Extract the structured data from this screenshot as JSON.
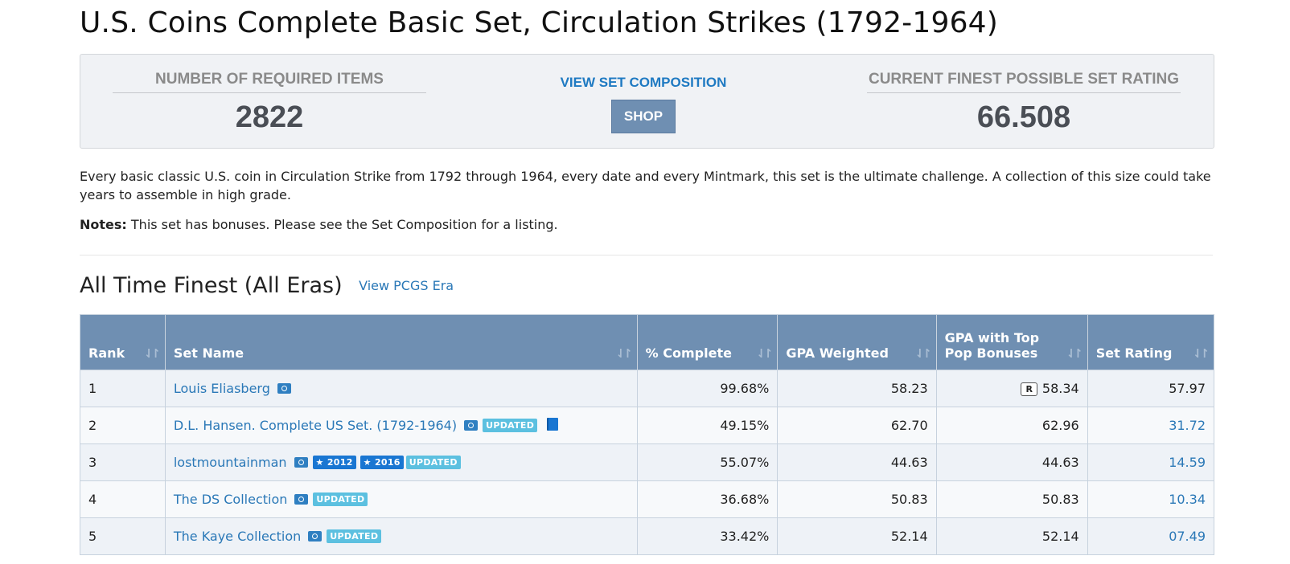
{
  "page": {
    "title": "U.S. Coins Complete Basic Set, Circulation Strikes (1792-1964)"
  },
  "stats": {
    "required_label": "NUMBER OF REQUIRED ITEMS",
    "required_value": "2822",
    "view_link": "VIEW SET COMPOSITION",
    "shop_label": "SHOP",
    "rating_label": "CURRENT FINEST POSSIBLE SET RATING",
    "rating_value": "66.508"
  },
  "description": "Every basic classic U.S. coin in Circulation Strike from 1792 through 1964, every date and every Mintmark, this set is the ultimate challenge. A collection of this size could take years to assemble in high grade.",
  "notes": {
    "label": "Notes:",
    "text": " This set has bonuses. Please see the Set Composition for a listing."
  },
  "section": {
    "heading": "All Time Finest (All Eras)",
    "link": "View PCGS Era"
  },
  "table": {
    "headers": {
      "rank": "Rank",
      "set_name": "Set Name",
      "complete": "% Complete",
      "gpa_weighted": "GPA Weighted",
      "gpa_top_line1": "GPA with Top",
      "gpa_top_line2": "Pop Bonuses",
      "set_rating": "Set Rating"
    },
    "rows": [
      {
        "rank": "1",
        "name": "Louis Eliasberg",
        "complete": "99.68%",
        "gpa": "58.23",
        "r_badge": "R",
        "gpa_top": "58.34",
        "rating": "57.97"
      },
      {
        "rank": "2",
        "name": "D.L. Hansen. Complete US Set. (1792-1964)",
        "badge": "UPDATED",
        "complete": "49.15%",
        "gpa": "62.70",
        "gpa_top": "62.96",
        "rating": "31.72"
      },
      {
        "rank": "3",
        "name": "lostmountainman",
        "star1": "★ 2012",
        "star2": "★ 2016",
        "badge": "UPDATED",
        "complete": "55.07%",
        "gpa": "44.63",
        "gpa_top": "44.63",
        "rating": "14.59"
      },
      {
        "rank": "4",
        "name": "The DS Collection",
        "badge": "UPDATED",
        "complete": "36.68%",
        "gpa": "50.83",
        "gpa_top": "50.83",
        "rating": "10.34"
      },
      {
        "rank": "5",
        "name": "The Kaye Collection",
        "badge": "UPDATED",
        "complete": "33.42%",
        "gpa": "52.14",
        "gpa_top": "52.14",
        "rating": "07.49"
      }
    ]
  },
  "icons": {
    "camera": "camera-icon",
    "book": "book-icon",
    "sort": "sort-icon"
  },
  "colors": {
    "header_bg": "#6f8fb2",
    "link": "#2a78b7",
    "updated_badge": "#5cc0e0",
    "star_badge": "#1976d2"
  }
}
